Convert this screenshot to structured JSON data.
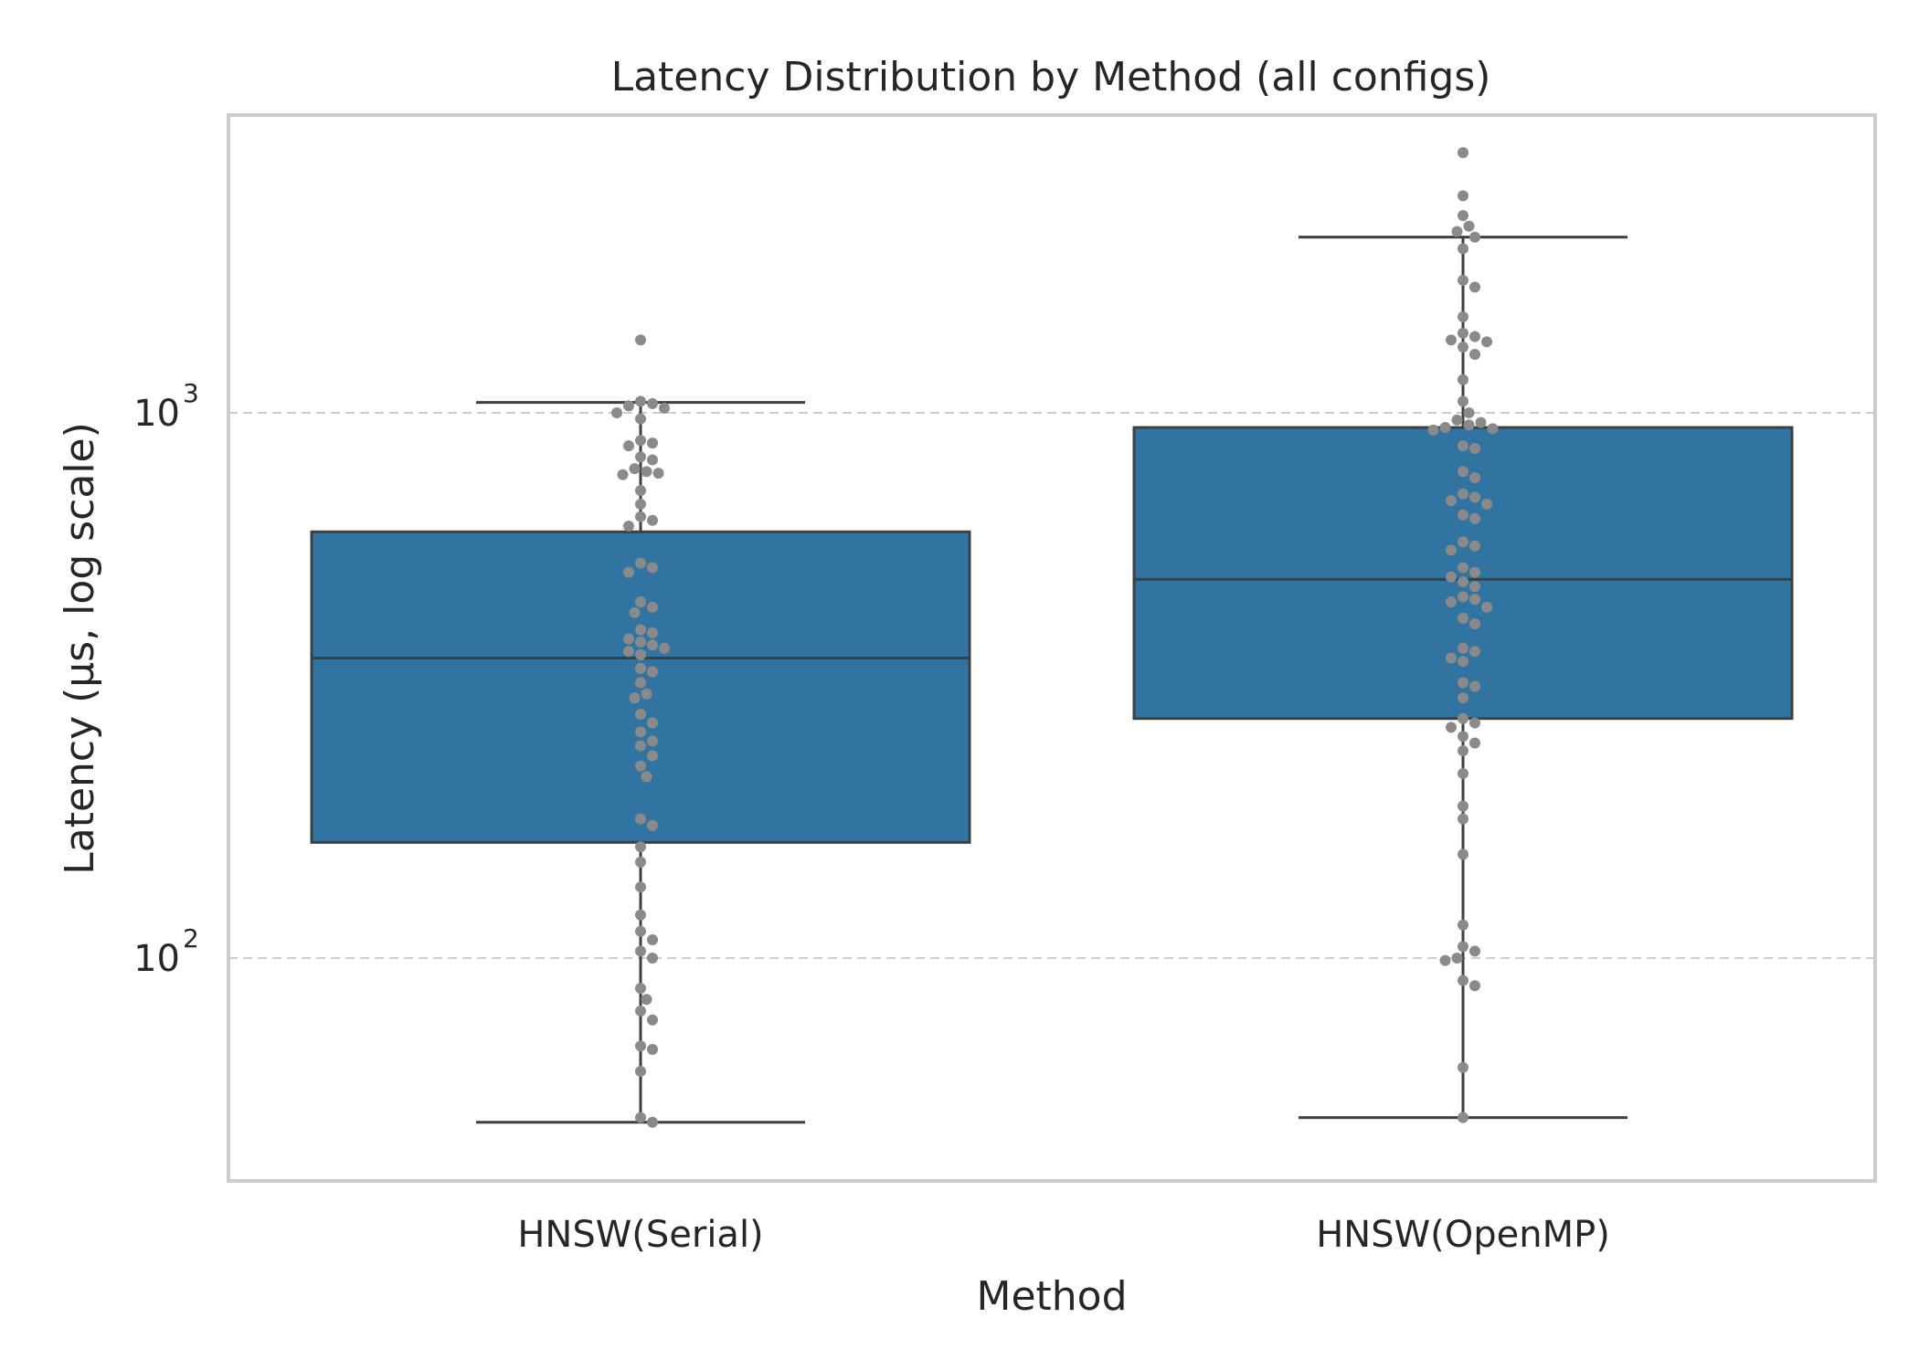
{
  "chart_data": {
    "type": "box",
    "title": "Latency Distribution by Method (all configs)",
    "xlabel": "Method",
    "ylabel": "Latency (μs, log scale)",
    "yscale": "log",
    "ylim": [
      40,
      3000
    ],
    "yticks": [
      {
        "value": 100,
        "base": "10",
        "exp": "2"
      },
      {
        "value": 1000,
        "base": "10",
        "exp": "3"
      }
    ],
    "grid": "horizontal dashed",
    "colors": {
      "box": "#3274a1",
      "line": "#3f3f3f",
      "point": "#8a8a8a",
      "frame": "#cccccc",
      "grid": "#cccccc"
    },
    "categories": [
      "HNSW(Serial)",
      "HNSW(OpenMP)"
    ],
    "boxes": [
      {
        "name": "HNSW(Serial)",
        "whisker_low": 50,
        "q1": 163,
        "median": 355,
        "q3": 605,
        "whisker_high": 1045,
        "points": [
          1360,
          1050,
          1040,
          1030,
          1020,
          1000,
          975,
          890,
          880,
          870,
          830,
          820,
          790,
          780,
          775,
          770,
          720,
          680,
          645,
          635,
          620,
          530,
          520,
          510,
          450,
          440,
          430,
          400,
          395,
          385,
          380,
          375,
          370,
          365,
          360,
          340,
          335,
          320,
          305,
          300,
          280,
          270,
          260,
          250,
          245,
          235,
          225,
          215,
          180,
          175,
          160,
          150,
          135,
          120,
          112,
          108,
          103,
          100,
          88,
          84,
          80,
          77,
          69,
          68,
          62,
          51,
          50
        ]
      },
      {
        "name": "HNSW(OpenMP)",
        "whisker_low": 51,
        "q1": 275,
        "median": 495,
        "q3": 940,
        "whisker_high": 2100,
        "points": [
          3000,
          2500,
          2300,
          2200,
          2150,
          2100,
          2000,
          1750,
          1700,
          1500,
          1400,
          1380,
          1360,
          1350,
          1320,
          1280,
          1150,
          1050,
          1000,
          970,
          960,
          950,
          940,
          935,
          930,
          870,
          860,
          780,
          760,
          710,
          700,
          690,
          680,
          650,
          640,
          580,
          570,
          560,
          520,
          510,
          500,
          490,
          480,
          460,
          455,
          450,
          440,
          420,
          410,
          370,
          365,
          355,
          350,
          320,
          315,
          300,
          275,
          270,
          265,
          255,
          248,
          240,
          218,
          190,
          180,
          155,
          115,
          105,
          103,
          100,
          99,
          91,
          89,
          63,
          51
        ]
      }
    ]
  }
}
